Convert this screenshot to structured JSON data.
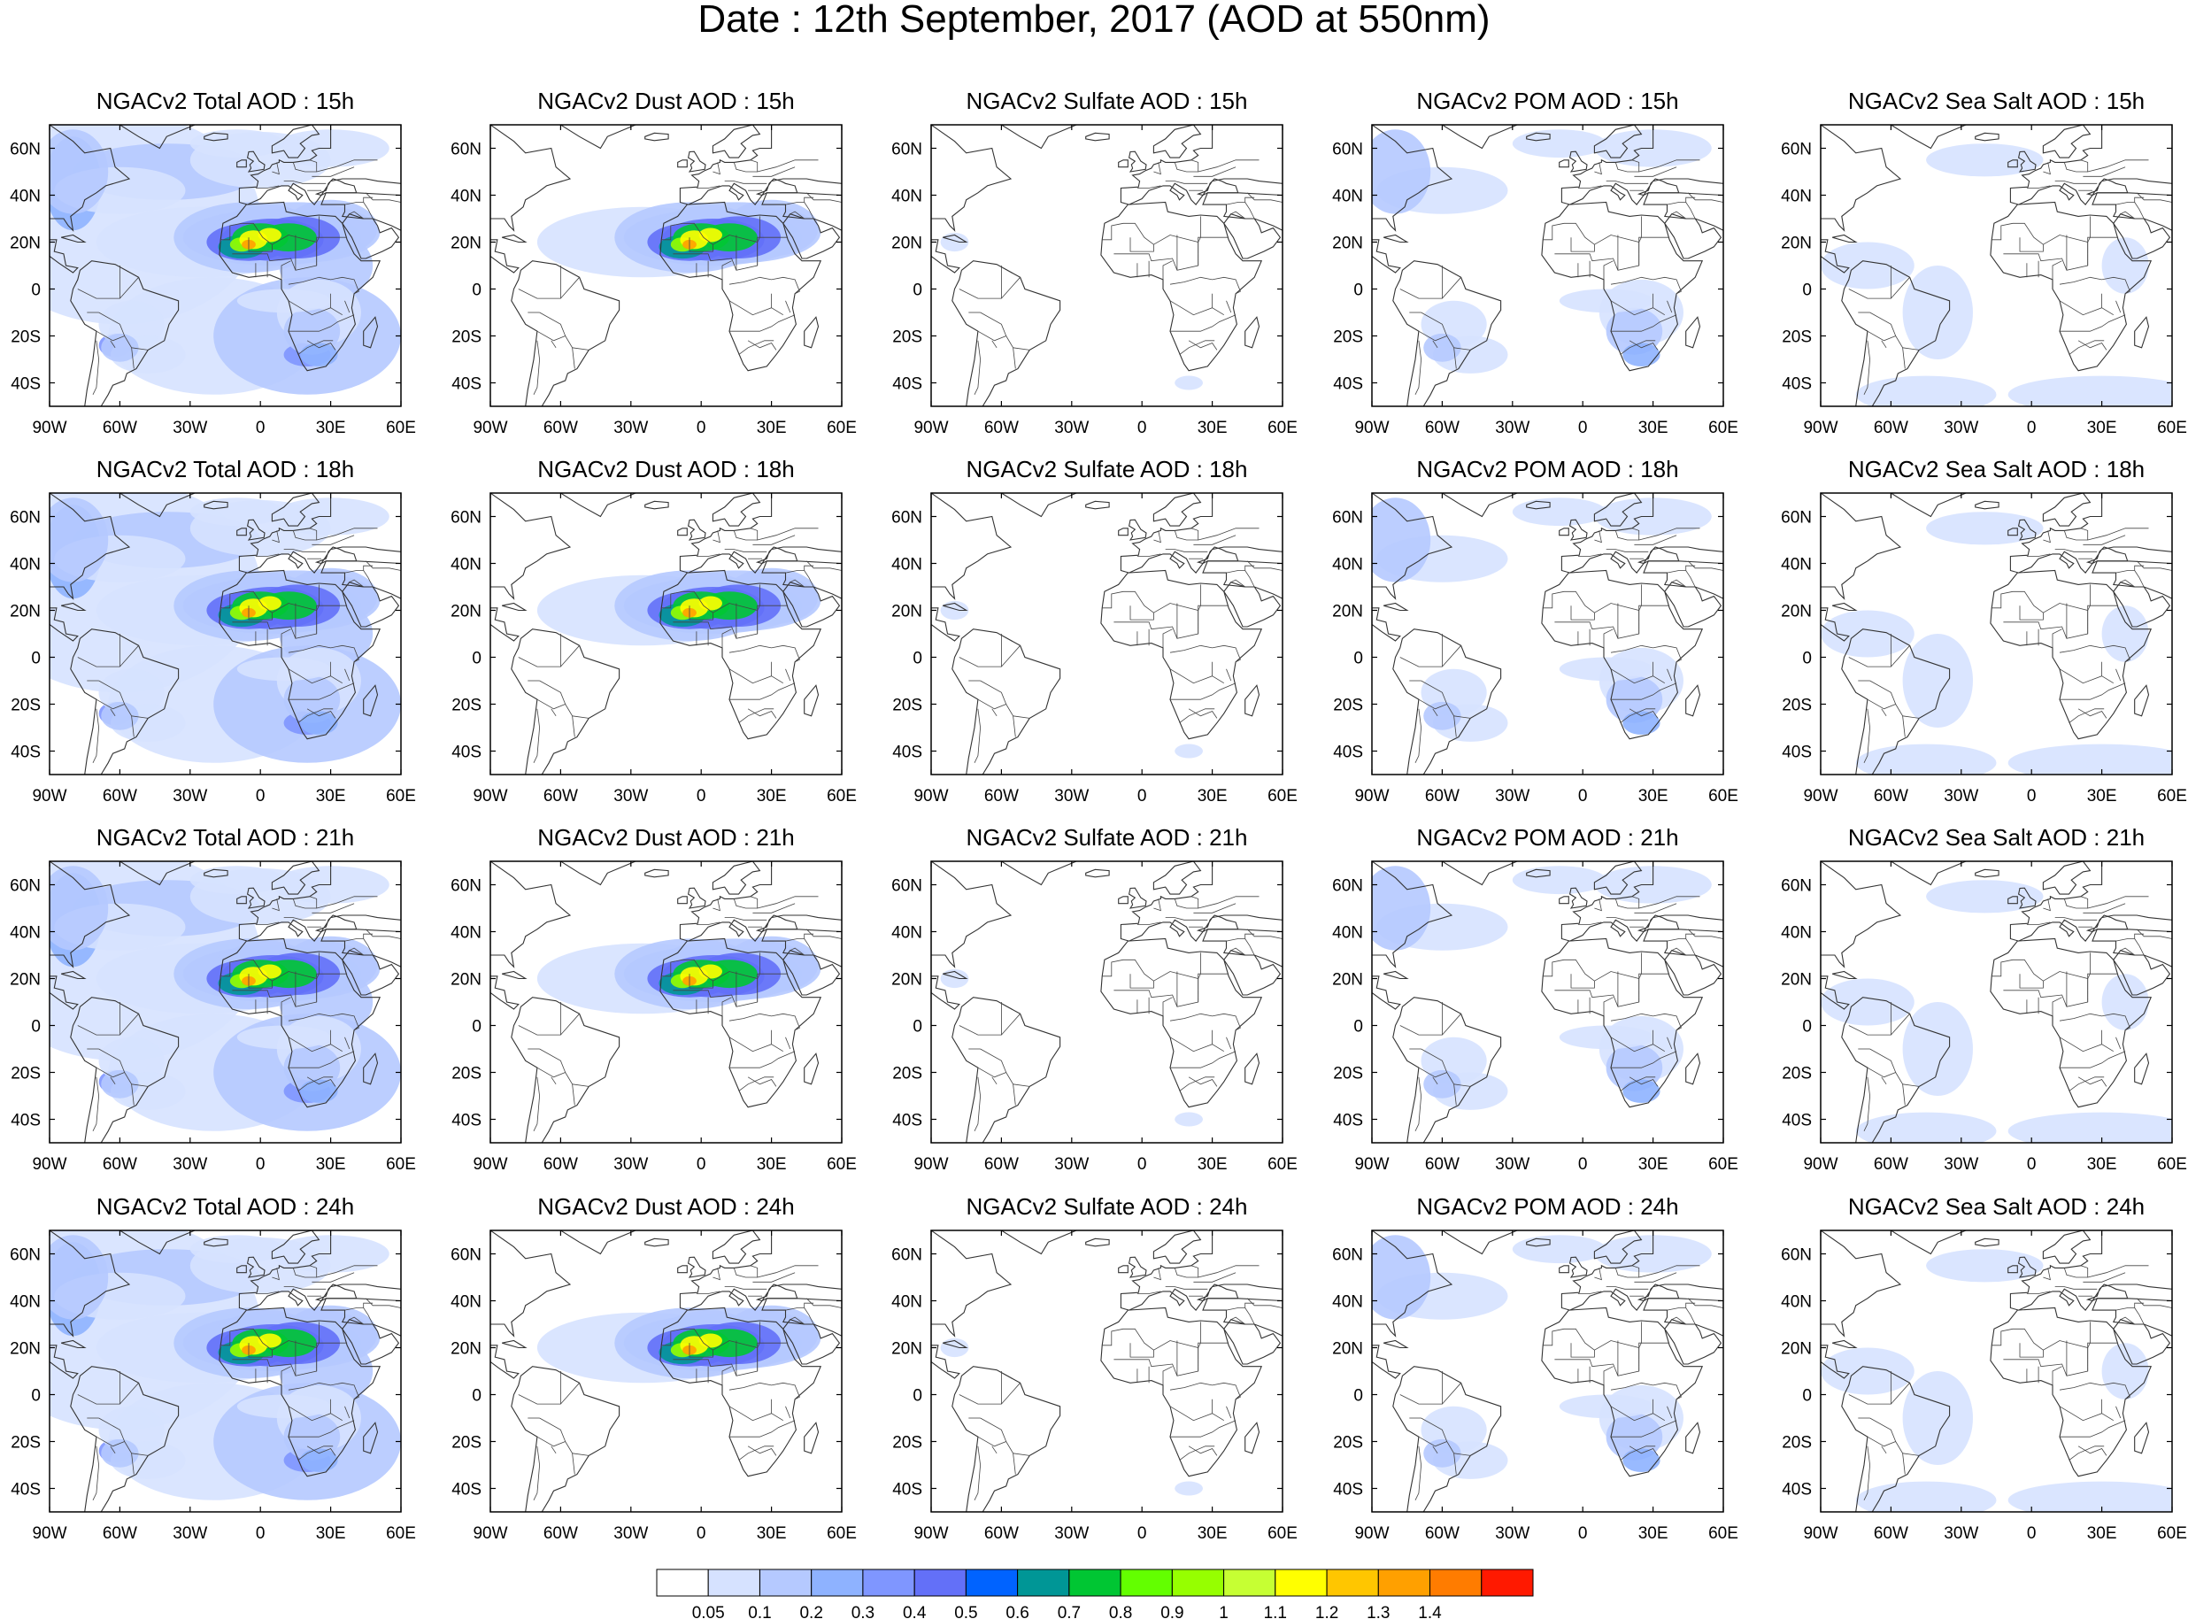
{
  "title": "Date : 12th September, 2017 (AOD at 550nm)",
  "species": [
    {
      "key": "total",
      "name": "Total"
    },
    {
      "key": "dust",
      "name": "Dust"
    },
    {
      "key": "sulfate",
      "name": "Sulfate"
    },
    {
      "key": "pom",
      "name": "POM"
    },
    {
      "key": "seasalt",
      "name": "Sea Salt"
    }
  ],
  "panel_titles": [
    [
      "NGACv2 Total AOD : 15h",
      "NGACv2 Dust AOD : 15h",
      "NGACv2 Sulfate AOD : 15h",
      "NGACv2 POM AOD : 15h",
      "NGACv2 Sea Salt AOD : 15h"
    ],
    [
      "NGACv2 Total AOD : 18h",
      "NGACv2 Dust AOD : 18h",
      "NGACv2 Sulfate AOD : 18h",
      "NGACv2 POM AOD : 18h",
      "NGACv2 Sea Salt AOD : 18h"
    ],
    [
      "NGACv2 Total AOD : 21h",
      "NGACv2 Dust AOD : 21h",
      "NGACv2 Sulfate AOD : 21h",
      "NGACv2 POM AOD : 21h",
      "NGACv2 Sea Salt AOD : 21h"
    ],
    [
      "NGACv2 Total AOD : 24h",
      "NGACv2 Dust AOD : 24h",
      "NGACv2 Sulfate AOD : 24h",
      "NGACv2 POM AOD : 24h",
      "NGACv2 Sea Salt  AOD : 24h"
    ]
  ],
  "forecast_hours": [
    "15h",
    "18h",
    "21h",
    "24h"
  ],
  "map_extent": {
    "lon_min": -90,
    "lon_max": 60,
    "lat_min": -50,
    "lat_max": 70
  },
  "lon_ticks": [
    {
      "value": -90,
      "label": "90W"
    },
    {
      "value": -60,
      "label": "60W"
    },
    {
      "value": -30,
      "label": "30W"
    },
    {
      "value": 0,
      "label": "0"
    },
    {
      "value": 30,
      "label": "30E"
    },
    {
      "value": 60,
      "label": "60E"
    }
  ],
  "lat_ticks": [
    {
      "value": 60,
      "label": "60N"
    },
    {
      "value": 40,
      "label": "40N"
    },
    {
      "value": 20,
      "label": "20N"
    },
    {
      "value": 0,
      "label": "0"
    },
    {
      "value": -20,
      "label": "20S"
    },
    {
      "value": -40,
      "label": "40S"
    }
  ],
  "colorbar": {
    "colors": [
      "#ffffff",
      "#d6e2ff",
      "#b5c9ff",
      "#8eb2ff",
      "#7f96ff",
      "#6370f8",
      "#0063ff",
      "#009696",
      "#00c633",
      "#63ff00",
      "#96ff00",
      "#c6ff33",
      "#ffff00",
      "#ffc600",
      "#ffa000",
      "#ff7c00",
      "#ff1900"
    ],
    "labels": [
      "0.05",
      "0.1",
      "0.2",
      "0.3",
      "0.4",
      "0.5",
      "0.6",
      "0.7",
      "0.8",
      "0.9",
      "1",
      "1.1",
      "1.2",
      "1.3",
      "1.4"
    ]
  }
}
